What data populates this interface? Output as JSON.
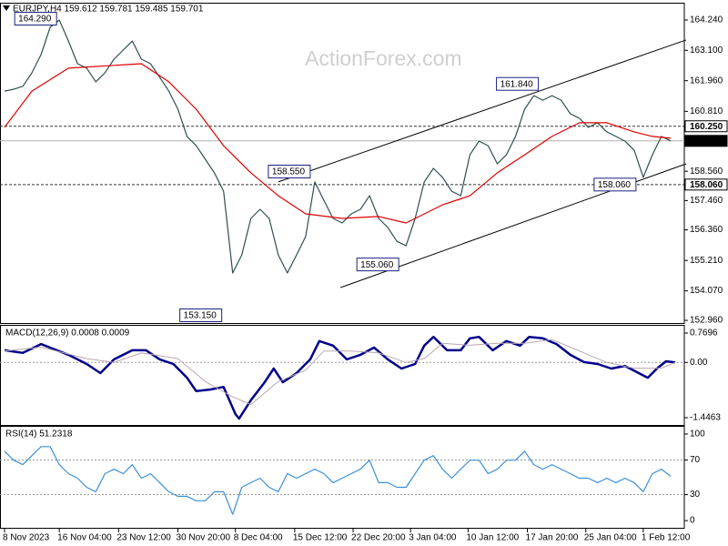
{
  "chart_data": [
    {
      "type": "line",
      "title": "EURJPY,H4  159.612 159.781 159.485 159.701",
      "watermark": "ActionForex.com",
      "xlim": [
        -0.5,
        74.5
      ],
      "ylim": [
        152.86,
        164.82
      ],
      "yticks": [
        {
          "value": 164.24,
          "label": "164.240"
        },
        {
          "value": 163.1,
          "label": "163.100"
        },
        {
          "value": 161.96,
          "label": "161.960"
        },
        {
          "value": 160.81,
          "label": "160.810"
        },
        {
          "value": 158.56,
          "label": "158.560"
        },
        {
          "value": 157.46,
          "label": "157.460"
        },
        {
          "value": 156.36,
          "label": "156.360"
        },
        {
          "value": 155.21,
          "label": "155.210"
        },
        {
          "value": 154.07,
          "label": "154.070"
        },
        {
          "value": 152.96,
          "label": "152.960"
        }
      ],
      "series": [
        {
          "color": "#2f4f4f",
          "values": [
            161.57,
            161.64,
            161.75,
            162.26,
            162.94,
            163.97,
            164.24,
            163.45,
            162.6,
            162.43,
            161.92,
            162.26,
            162.77,
            163.11,
            163.45,
            162.77,
            162.6,
            162.09,
            161.57,
            160.89,
            159.87,
            159.52,
            159.01,
            158.5,
            157.81,
            154.74,
            155.42,
            156.79,
            157.13,
            156.79,
            155.42,
            154.74,
            155.42,
            156.11,
            158.16,
            157.47,
            156.79,
            156.62,
            156.96,
            157.13,
            157.64,
            156.79,
            156.45,
            155.93,
            155.76,
            156.79,
            158.16,
            158.67,
            158.33,
            157.81,
            157.64,
            159.18,
            159.69,
            159.52,
            158.84,
            159.18,
            159.87,
            160.89,
            161.4,
            161.23,
            161.4,
            161.23,
            160.72,
            160.55,
            160.21,
            160.38,
            160.04,
            159.87,
            159.69,
            159.35,
            158.33,
            159.18,
            159.87,
            159.7
          ]
        },
        {
          "color": "#e00000",
          "x": [
            0,
            3,
            7,
            15,
            18,
            21,
            24,
            27,
            30,
            33,
            37,
            41,
            44,
            48,
            51,
            54,
            57,
            60,
            63,
            66,
            69,
            71,
            73
          ],
          "values": [
            160.21,
            161.57,
            162.43,
            162.6,
            161.92,
            160.89,
            159.52,
            158.5,
            157.64,
            156.96,
            156.79,
            156.86,
            156.62,
            157.3,
            157.64,
            158.5,
            159.18,
            159.87,
            160.38,
            160.38,
            160.04,
            159.87,
            159.8
          ]
        }
      ],
      "trendlines": [
        {
          "color": "#000000",
          "x": [
            30,
            74.7
          ],
          "values": [
            158.16,
            163.49
          ]
        },
        {
          "color": "#000000",
          "x": [
            36.8,
            74.7
          ],
          "values": [
            154.19,
            158.84
          ]
        }
      ],
      "levels": [
        {
          "value": 160.25,
          "label": "160.250",
          "style": "dashed"
        },
        {
          "value": 158.06,
          "label": "158.060",
          "style": "dashed"
        },
        {
          "value": 159.701,
          "label": "159.701",
          "style": "current"
        }
      ],
      "annotations": [
        {
          "x": 5.7,
          "value": 164.29,
          "label": "164.290"
        },
        {
          "x": 58.5,
          "value": 161.84,
          "label": "161.840"
        },
        {
          "x": 33.5,
          "value": 158.55,
          "label": "158.550"
        },
        {
          "x": 43.2,
          "value": 155.06,
          "label": "155.060"
        },
        {
          "x": 23.8,
          "value": 153.15,
          "label": "153.150"
        },
        {
          "x": 69.2,
          "value": 158.06,
          "label": "158.060"
        }
      ]
    },
    {
      "type": "line",
      "title": "MACD(12,26,9) 0.0008 0.0009",
      "xlim": [
        -0.5,
        74.5
      ],
      "ylim": [
        -1.637,
        0.936
      ],
      "yticks": [
        0.7696,
        {
          "value": 0,
          "label": "0.00"
        },
        -1.4463
      ],
      "levels": [
        0
      ],
      "series": [
        {
          "color": "#00008b",
          "width": 2.5,
          "x": [
            0,
            2,
            4,
            7,
            9,
            10.5,
            12,
            14,
            15.5,
            17,
            18.5,
            20,
            21,
            22.5,
            24,
            25.3,
            25.7,
            27,
            28.5,
            29.5,
            30.5,
            32,
            33.5,
            34.5,
            36,
            37.5,
            39,
            40.5,
            42,
            43.5,
            45,
            46,
            47,
            48.5,
            50,
            51,
            52,
            53.5,
            55,
            56.5,
            57.5,
            59,
            60.5,
            62,
            63.5,
            65,
            66.5,
            68,
            69.5,
            70.5,
            71.5,
            72.5,
            73.5
          ],
          "values": [
            0.32,
            0.25,
            0.48,
            0.2,
            -0.04,
            -0.28,
            0.08,
            0.32,
            0.32,
            0.08,
            -0.04,
            -0.4,
            -0.75,
            -0.71,
            -0.64,
            -1.35,
            -1.47,
            -0.99,
            -0.52,
            -0.16,
            -0.52,
            -0.28,
            0.08,
            0.56,
            0.44,
            0.08,
            0.2,
            0.39,
            0.08,
            -0.16,
            -0.04,
            0.44,
            0.67,
            0.32,
            0.32,
            0.63,
            0.67,
            0.32,
            0.56,
            0.44,
            0.67,
            0.63,
            0.48,
            0.2,
            0.01,
            -0.04,
            -0.16,
            -0.09,
            -0.28,
            -0.4,
            -0.16,
            0.03,
            0.0008
          ]
        },
        {
          "color": "#b8a8b0",
          "width": 1,
          "x": [
            0,
            4,
            9,
            12,
            15,
            19,
            22,
            25,
            27,
            30,
            33,
            35,
            38,
            41,
            44,
            46,
            48,
            51,
            54,
            57,
            60,
            63,
            66,
            69,
            72,
            73.5
          ],
          "values": [
            0.3,
            0.4,
            0.1,
            0.0,
            0.25,
            0.1,
            -0.5,
            -0.9,
            -1.1,
            -0.5,
            -0.2,
            0.3,
            0.3,
            0.25,
            0.0,
            0.1,
            0.5,
            0.45,
            0.5,
            0.5,
            0.6,
            0.3,
            0.0,
            -0.15,
            -0.15,
            0.0009
          ]
        }
      ]
    },
    {
      "type": "line",
      "title": "RSI(14) 51.2318",
      "xlim": [
        -0.5,
        74.5
      ],
      "ylim": [
        -8.3,
        107.3
      ],
      "yticks": [
        100,
        70,
        30,
        0
      ],
      "levels": [
        70,
        30
      ],
      "xticks": [
        {
          "value": 0,
          "label": "8 Nov 2023"
        },
        {
          "value": 6,
          "label": "16 Nov 04:00"
        },
        {
          "value": 12.5,
          "label": "23 Nov 12:00"
        },
        {
          "value": 19,
          "label": "30 Nov 20:00"
        },
        {
          "value": 25.3,
          "label": "8 Dec 04:00"
        },
        {
          "value": 31.8,
          "label": "15 Dec 12:00"
        },
        {
          "value": 38.2,
          "label": "22 Dec 20:00"
        },
        {
          "value": 44.5,
          "label": "3 Jan 04:00"
        },
        {
          "value": 50.8,
          "label": "10 Jan 12:00"
        },
        {
          "value": 57.3,
          "label": "17 Jan 20:00"
        },
        {
          "value": 63.7,
          "label": "25 Jan 04:00"
        },
        {
          "value": 70,
          "label": "1 Feb 12:00"
        }
      ],
      "series": [
        {
          "color": "#3d8fd6",
          "values": [
            80.2,
            69.8,
            64.6,
            75,
            85.4,
            85.4,
            64.6,
            54.2,
            49,
            38.5,
            33.3,
            54.2,
            59.4,
            54.2,
            64.6,
            49,
            54.2,
            43.8,
            33.3,
            28.1,
            28.1,
            22.9,
            22.9,
            33.3,
            33.3,
            7.3,
            38.5,
            43.8,
            49,
            38.5,
            33.3,
            54.2,
            49,
            54.2,
            59.4,
            54.2,
            43.8,
            49,
            54.2,
            59.4,
            69.8,
            43.8,
            43.8,
            38.5,
            38.5,
            54.2,
            69.8,
            75,
            59.4,
            49,
            59.4,
            69.8,
            69.8,
            54.2,
            59.4,
            69.8,
            69.8,
            80.2,
            64.6,
            59.4,
            64.6,
            59.4,
            54.2,
            49,
            49,
            43.8,
            49,
            43.8,
            49,
            43.8,
            33.3,
            54.2,
            59.4,
            51.2
          ]
        }
      ]
    }
  ]
}
